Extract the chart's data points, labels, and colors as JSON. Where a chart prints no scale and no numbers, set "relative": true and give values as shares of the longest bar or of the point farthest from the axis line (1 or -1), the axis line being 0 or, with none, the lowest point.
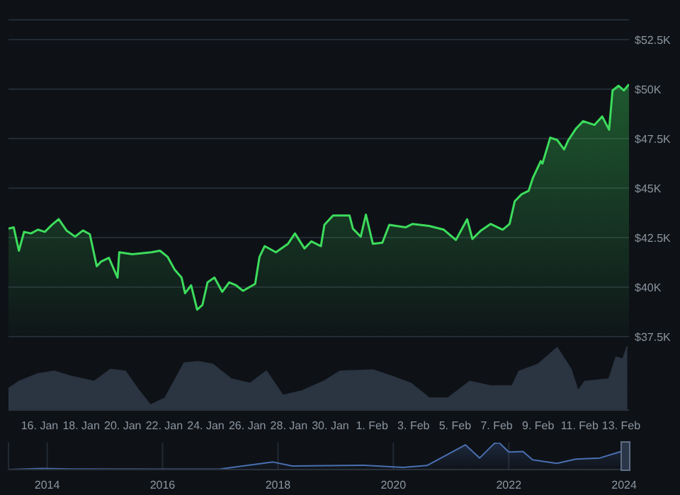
{
  "chart_data": [
    {
      "type": "area",
      "color": "#3ddc5c",
      "grid": "y",
      "tick_labels": "y",
      "xlim": [
        "2024-01-14T12:00",
        "2024-02-13T09:00"
      ],
      "ylim": [
        37500,
        53500
      ],
      "yticks": [
        {
          "value": 37500,
          "label": "$37.5K"
        },
        {
          "value": 40000,
          "label": "$40K"
        },
        {
          "value": 42500,
          "label": "$42.5K"
        },
        {
          "value": 45000,
          "label": "$45K"
        },
        {
          "value": 47500,
          "label": "$47.5K"
        },
        {
          "value": 50000,
          "label": "$50K"
        },
        {
          "value": 52500,
          "label": "$52.5K"
        }
      ],
      "x": [
        "2024-01-14T12:00",
        "2024-01-14T18:00",
        "2024-01-15T00:00",
        "2024-01-15T06:00",
        "2024-01-15T14:00",
        "2024-01-15T22:00",
        "2024-01-16T06:00",
        "2024-01-16T14:00",
        "2024-01-16T22:00",
        "2024-01-17T07:00",
        "2024-01-17T17:00",
        "2024-01-18T02:00",
        "2024-01-18T10:00",
        "2024-01-18T18:00",
        "2024-01-18T23:00",
        "2024-01-19T08:00",
        "2024-01-19T18:00",
        "2024-01-19T20:00",
        "2024-01-20T11:00",
        "2024-01-21T09:00",
        "2024-01-21T19:00",
        "2024-01-22T04:00",
        "2024-01-22T12:00",
        "2024-01-22T20:00",
        "2024-01-23T00:00",
        "2024-01-23T07:00",
        "2024-01-23T14:00",
        "2024-01-23T20:00",
        "2024-01-24T02:00",
        "2024-01-24T10:00",
        "2024-01-24T19:00",
        "2024-01-25T03:00",
        "2024-01-25T11:00",
        "2024-01-25T19:00",
        "2024-01-26T09:00",
        "2024-01-26T14:00",
        "2024-01-26T20:00",
        "2024-01-27T09:00",
        "2024-01-27T23:00",
        "2024-01-28T07:00",
        "2024-01-28T18:00",
        "2024-01-29T02:00",
        "2024-01-29T13:00",
        "2024-01-29T17:00",
        "2024-01-30T03:00",
        "2024-01-30T22:00",
        "2024-01-31T02:00",
        "2024-01-31T11:00",
        "2024-01-31T17:00",
        "2024-02-01T01:00",
        "2024-02-01T12:00",
        "2024-02-01T20:00",
        "2024-02-02T15:00",
        "2024-02-02T23:00",
        "2024-02-03T18:00",
        "2024-02-04T11:00",
        "2024-02-05T01:00",
        "2024-02-05T14:00",
        "2024-02-05T20:00",
        "2024-02-06T06:00",
        "2024-02-06T17:00",
        "2024-02-07T07:00",
        "2024-02-07T15:00",
        "2024-02-07T21:00",
        "2024-02-08T05:00",
        "2024-02-08T13:00",
        "2024-02-08T18:00",
        "2024-02-09T03:00",
        "2024-02-09T05:00",
        "2024-02-09T14:00",
        "2024-02-09T22:00",
        "2024-02-10T06:00",
        "2024-02-10T11:00",
        "2024-02-10T20:00",
        "2024-02-11T04:00",
        "2024-02-11T17:00",
        "2024-02-12T02:00",
        "2024-02-12T10:00",
        "2024-02-12T14:00",
        "2024-02-12T21:00",
        "2024-02-13T03:00",
        "2024-02-13T09:00"
      ],
      "values": [
        42950,
        43020,
        41840,
        42790,
        42710,
        42900,
        42790,
        43140,
        43430,
        42860,
        42550,
        42860,
        42670,
        41050,
        41290,
        41480,
        40480,
        41760,
        41660,
        41760,
        41840,
        41520,
        40880,
        40480,
        39690,
        40090,
        38860,
        39090,
        40240,
        40480,
        39760,
        40240,
        40090,
        39810,
        40160,
        41520,
        42070,
        41760,
        42190,
        42710,
        41950,
        42310,
        42070,
        43140,
        43620,
        43620,
        42950,
        42550,
        43660,
        42190,
        42240,
        43140,
        43020,
        43190,
        43090,
        42900,
        42380,
        43430,
        42430,
        42860,
        43190,
        42900,
        43190,
        44340,
        44690,
        44860,
        45520,
        46360,
        46240,
        47550,
        47430,
        46950,
        47430,
        48020,
        48380,
        48190,
        48620,
        47950,
        49930,
        50170,
        49930,
        50240
      ]
    },
    {
      "type": "area",
      "relative": true,
      "color": "#2b3441",
      "tick_labels": "x",
      "xlim": [
        "2024-01-14T12:00",
        "2024-02-13T09:00"
      ],
      "xticks": [
        {
          "value": "2024-01-16",
          "label": "16. Jan"
        },
        {
          "value": "2024-01-18",
          "label": "18. Jan"
        },
        {
          "value": "2024-01-20",
          "label": "20. Jan"
        },
        {
          "value": "2024-01-22",
          "label": "22. Jan"
        },
        {
          "value": "2024-01-24",
          "label": "24. Jan"
        },
        {
          "value": "2024-01-26",
          "label": "26. Jan"
        },
        {
          "value": "2024-01-28",
          "label": "28. Jan"
        },
        {
          "value": "2024-01-30",
          "label": "30. Jan"
        },
        {
          "value": "2024-02-01",
          "label": "1. Feb"
        },
        {
          "value": "2024-02-03",
          "label": "3. Feb"
        },
        {
          "value": "2024-02-05",
          "label": "5. Feb"
        },
        {
          "value": "2024-02-07",
          "label": "7. Feb"
        },
        {
          "value": "2024-02-09",
          "label": "9. Feb"
        },
        {
          "value": "2024-02-11",
          "label": "11. Feb"
        },
        {
          "value": "2024-02-13",
          "label": "13. Feb"
        }
      ],
      "x": [
        "2024-01-14T12:00",
        "2024-01-15T00:00",
        "2024-01-15T22:00",
        "2024-01-16T17:00",
        "2024-01-17T12:00",
        "2024-01-18T15:00",
        "2024-01-19T10:00",
        "2024-01-20T03:00",
        "2024-01-20T19:00",
        "2024-01-21T08:00",
        "2024-01-22T01:00",
        "2024-01-22T23:00",
        "2024-01-23T15:00",
        "2024-01-24T08:00",
        "2024-01-25T05:00",
        "2024-01-26T03:00",
        "2024-01-26T22:00",
        "2024-01-27T17:00",
        "2024-01-28T15:00",
        "2024-01-29T16:00",
        "2024-01-30T11:00",
        "2024-02-01T01:00",
        "2024-02-01T23:00",
        "2024-02-02T21:00",
        "2024-02-03T18:00",
        "2024-02-04T16:00",
        "2024-02-05T17:00",
        "2024-02-06T17:00",
        "2024-02-07T18:00",
        "2024-02-08T02:00",
        "2024-02-09T00:00",
        "2024-02-09T22:00",
        "2024-02-10T14:00",
        "2024-02-10T22:00",
        "2024-02-11T06:00",
        "2024-02-12T10:00",
        "2024-02-12T18:00",
        "2024-02-13T02:00",
        "2024-02-13T07:00"
      ],
      "values": [
        0.34,
        0.45,
        0.57,
        0.61,
        0.53,
        0.45,
        0.64,
        0.61,
        0.3,
        0.08,
        0.19,
        0.74,
        0.76,
        0.72,
        0.49,
        0.42,
        0.61,
        0.23,
        0.3,
        0.45,
        0.61,
        0.63,
        0.53,
        0.42,
        0.19,
        0.19,
        0.45,
        0.38,
        0.38,
        0.61,
        0.72,
        0.98,
        0.64,
        0.3,
        0.45,
        0.49,
        0.83,
        0.8,
        1
      ]
    },
    {
      "type": "area",
      "relative": true,
      "color": "#4a6fb0",
      "grid": "x",
      "tick_labels": "x",
      "xlim": [
        "2013-05",
        "2024-02"
      ],
      "xticks": [
        {
          "value": "2014",
          "label": "2014"
        },
        {
          "value": "2016",
          "label": "2016"
        },
        {
          "value": "2018",
          "label": "2018"
        },
        {
          "value": "2020",
          "label": "2020"
        },
        {
          "value": "2022",
          "label": "2022"
        },
        {
          "value": "2024",
          "label": "2024"
        }
      ],
      "x": [
        "2013-05",
        "2013-12",
        "2014-06",
        "2016-01",
        "2017-01",
        "2017-12",
        "2018-04",
        "2019-07",
        "2020-03",
        "2020-08",
        "2021-04",
        "2021-07",
        "2021-10",
        "2021-11",
        "2022-01",
        "2022-04",
        "2022-06",
        "2022-11",
        "2023-03",
        "2023-08",
        "2023-12",
        "2024-02"
      ],
      "values": [
        0,
        0.04,
        0.02,
        0.01,
        0.02,
        0.28,
        0.13,
        0.16,
        0.08,
        0.15,
        0.92,
        0.43,
        0.97,
        1,
        0.65,
        0.67,
        0.36,
        0.23,
        0.39,
        0.43,
        0.65,
        0.76
      ]
    }
  ]
}
